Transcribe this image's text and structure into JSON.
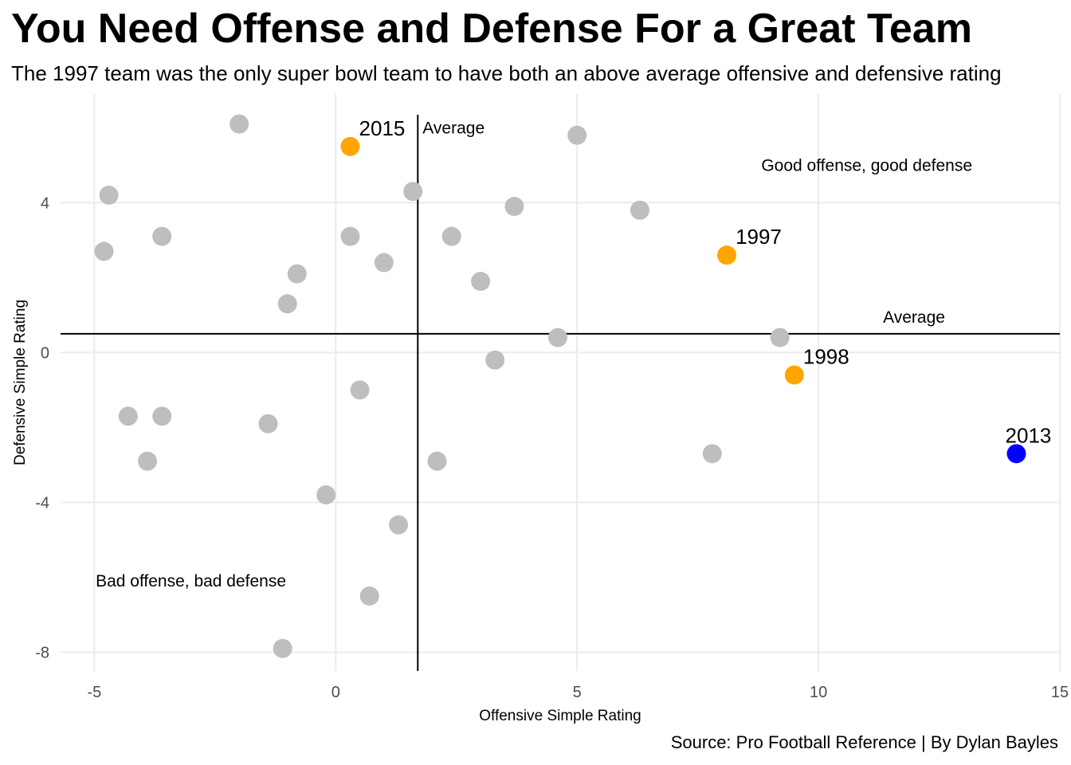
{
  "chart_data": {
    "type": "scatter",
    "title": "You Need Offense and Defense For a Great Team",
    "subtitle": "The 1997 team was the only super bowl team to have both an above average offensive and defensive rating",
    "caption": "Source: Pro Football Reference | By Dylan Bayles",
    "xlabel": "Offensive Simple Rating",
    "ylabel": "Defensive Simple Rating",
    "xlim": [
      -5.7,
      15.0
    ],
    "ylim": [
      -8.5,
      6.9
    ],
    "xticks": [
      -5,
      0,
      5,
      10,
      15
    ],
    "yticks": [
      -8,
      -4,
      0,
      4
    ],
    "grid": true,
    "colors": {
      "default": "#bebebe",
      "highlight": "#ffa500",
      "special": "#0000ff"
    },
    "average_lines": {
      "x": 1.7,
      "y": 0.5,
      "label": "Average"
    },
    "annotations": [
      {
        "text": "Good offense, good defense",
        "x": 11.0,
        "y": 5.0
      },
      {
        "text": "Bad offense, bad defense",
        "x": -3.0,
        "y": -6.1
      }
    ],
    "points": [
      {
        "x": -2.0,
        "y": 6.1
      },
      {
        "x": 5.0,
        "y": 5.8
      },
      {
        "x": -4.7,
        "y": 4.2
      },
      {
        "x": 1.6,
        "y": 4.3
      },
      {
        "x": 3.7,
        "y": 3.9
      },
      {
        "x": 6.3,
        "y": 3.8
      },
      {
        "x": -3.6,
        "y": 3.1
      },
      {
        "x": -4.8,
        "y": 2.7
      },
      {
        "x": 0.3,
        "y": 3.1
      },
      {
        "x": 2.4,
        "y": 3.1
      },
      {
        "x": 1.0,
        "y": 2.4
      },
      {
        "x": -0.8,
        "y": 2.1
      },
      {
        "x": 3.0,
        "y": 1.9
      },
      {
        "x": -1.0,
        "y": 1.3
      },
      {
        "x": 4.6,
        "y": 0.4
      },
      {
        "x": 9.2,
        "y": 0.4
      },
      {
        "x": 3.3,
        "y": -0.2
      },
      {
        "x": 0.5,
        "y": -1.0
      },
      {
        "x": -4.3,
        "y": -1.7
      },
      {
        "x": -3.6,
        "y": -1.7
      },
      {
        "x": -1.4,
        "y": -1.9
      },
      {
        "x": -3.9,
        "y": -2.9
      },
      {
        "x": 2.1,
        "y": -2.9
      },
      {
        "x": 7.8,
        "y": -2.7
      },
      {
        "x": -0.2,
        "y": -3.8
      },
      {
        "x": 1.3,
        "y": -4.6
      },
      {
        "x": 0.7,
        "y": -6.5
      },
      {
        "x": -1.1,
        "y": -7.9
      },
      {
        "x": 0.3,
        "y": 5.5,
        "label": "2015",
        "color": "highlight"
      },
      {
        "x": 8.1,
        "y": 2.6,
        "label": "1997",
        "color": "highlight"
      },
      {
        "x": 9.5,
        "y": -0.6,
        "label": "1998",
        "color": "highlight"
      },
      {
        "x": 14.1,
        "y": -2.7,
        "label": "2013",
        "color": "special"
      }
    ]
  }
}
